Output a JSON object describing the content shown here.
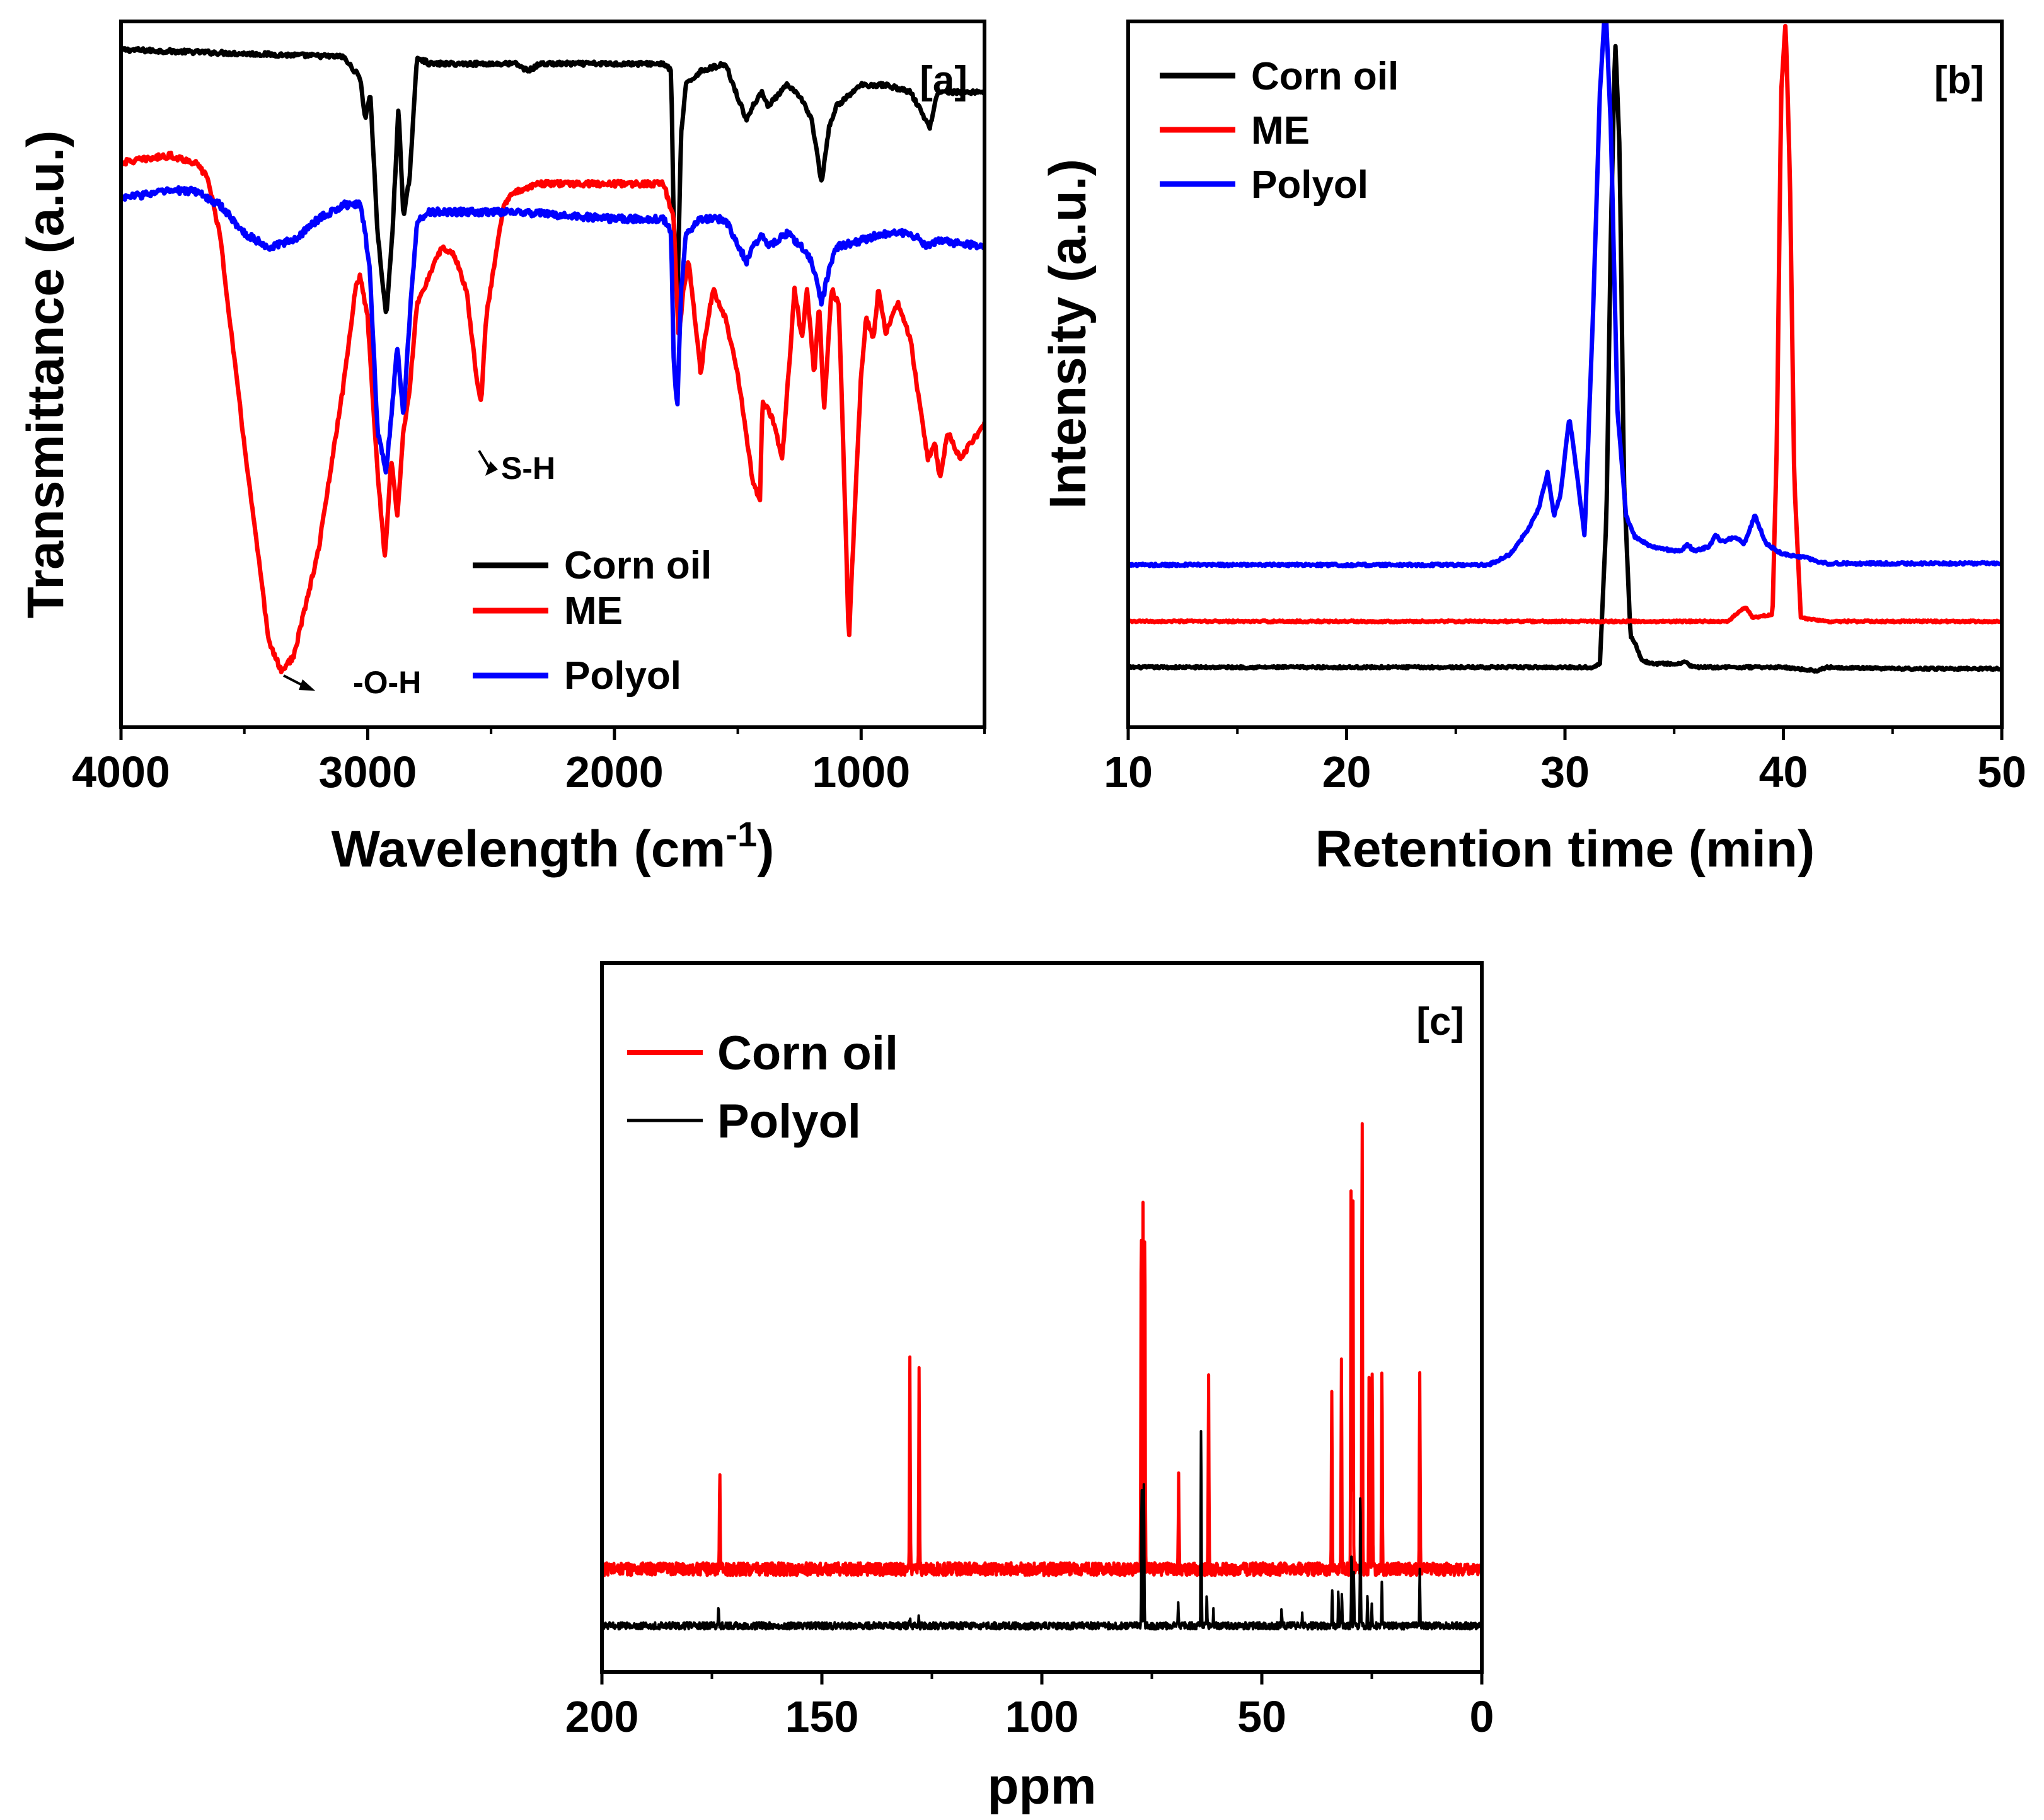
{
  "chart_data": [
    {
      "panel": "[a]",
      "type": "line",
      "xlabel": "Wavelength (cm",
      "xlabel_sup": "-1",
      "xlabel_close": ")",
      "ylabel": "Transmittance (a.u.)",
      "xlim": [
        4000,
        500
      ],
      "ylim": [
        0,
        1
      ],
      "x_ticks": [
        4000,
        3000,
        2000,
        1000
      ],
      "x_tick_labels": [
        "4000",
        "3000",
        "2000",
        "1000"
      ],
      "y_ticks": [],
      "legend_position": "bottom-right",
      "annotations": [
        {
          "text": "S-H",
          "x": 2550
        },
        {
          "text": "-O-H",
          "x": 3350
        }
      ],
      "series": [
        {
          "name": "Corn oil",
          "color": "#000000",
          "noise": 0.003,
          "x": [
            4000,
            3100,
            3030,
            3010,
            2990,
            2960,
            2925,
            2900,
            2875,
            2855,
            2830,
            2800,
            2750,
            2400,
            2350,
            2300,
            1800,
            1770,
            1760,
            1745,
            1730,
            1710,
            1650,
            1550,
            1465,
            1440,
            1400,
            1377,
            1300,
            1240,
            1200,
            1160,
            1130,
            1100,
            1000,
            900,
            800,
            722,
            690,
            500
          ],
          "y": [
            0.96,
            0.95,
            0.92,
            0.86,
            0.9,
            0.7,
            0.58,
            0.7,
            0.88,
            0.72,
            0.78,
            0.95,
            0.94,
            0.94,
            0.93,
            0.94,
            0.94,
            0.93,
            0.72,
            0.6,
            0.84,
            0.91,
            0.93,
            0.94,
            0.86,
            0.88,
            0.9,
            0.88,
            0.91,
            0.89,
            0.86,
            0.77,
            0.85,
            0.88,
            0.91,
            0.91,
            0.9,
            0.85,
            0.9,
            0.9
          ]
        },
        {
          "name": "ME",
          "color": "#ff0000",
          "noise": 0.004,
          "x": [
            4000,
            3800,
            3700,
            3650,
            3600,
            3500,
            3400,
            3350,
            3300,
            3200,
            3100,
            3050,
            3030,
            3000,
            2960,
            2930,
            2905,
            2880,
            2855,
            2830,
            2800,
            2700,
            2650,
            2600,
            2560,
            2540,
            2520,
            2450,
            2400,
            2300,
            2000,
            1800,
            1760,
            1740,
            1720,
            1700,
            1680,
            1650,
            1630,
            1600,
            1550,
            1500,
            1460,
            1440,
            1410,
            1400,
            1360,
            1320,
            1290,
            1270,
            1240,
            1220,
            1190,
            1170,
            1150,
            1120,
            1090,
            1060,
            1050,
            1040,
            1020,
            1000,
            980,
            950,
            930,
            900,
            850,
            800,
            760,
            730,
            700,
            680,
            650,
            600,
            500
          ],
          "y": [
            0.8,
            0.81,
            0.8,
            0.78,
            0.7,
            0.4,
            0.12,
            0.08,
            0.1,
            0.25,
            0.48,
            0.62,
            0.64,
            0.58,
            0.36,
            0.24,
            0.38,
            0.3,
            0.42,
            0.48,
            0.6,
            0.68,
            0.67,
            0.62,
            0.5,
            0.46,
            0.58,
            0.74,
            0.76,
            0.77,
            0.77,
            0.77,
            0.72,
            0.55,
            0.62,
            0.66,
            0.6,
            0.5,
            0.56,
            0.62,
            0.58,
            0.5,
            0.4,
            0.35,
            0.32,
            0.46,
            0.44,
            0.38,
            0.52,
            0.62,
            0.55,
            0.62,
            0.5,
            0.6,
            0.45,
            0.62,
            0.6,
            0.25,
            0.12,
            0.2,
            0.35,
            0.5,
            0.58,
            0.55,
            0.62,
            0.56,
            0.6,
            0.55,
            0.45,
            0.38,
            0.4,
            0.35,
            0.42,
            0.38,
            0.43
          ]
        },
        {
          "name": "Polyol",
          "color": "#0000ff",
          "noise": 0.005,
          "x": [
            4000,
            3800,
            3700,
            3600,
            3500,
            3400,
            3300,
            3200,
            3100,
            3030,
            3010,
            2990,
            2960,
            2925,
            2900,
            2880,
            2855,
            2830,
            2800,
            2750,
            2400,
            2000,
            1800,
            1770,
            1760,
            1745,
            1730,
            1710,
            1650,
            1550,
            1465,
            1440,
            1400,
            1377,
            1300,
            1240,
            1200,
            1160,
            1130,
            1100,
            1000,
            900,
            800,
            722,
            690,
            500
          ],
          "y": [
            0.75,
            0.76,
            0.76,
            0.74,
            0.7,
            0.68,
            0.69,
            0.72,
            0.74,
            0.74,
            0.7,
            0.64,
            0.42,
            0.36,
            0.46,
            0.54,
            0.44,
            0.58,
            0.72,
            0.73,
            0.73,
            0.72,
            0.72,
            0.7,
            0.52,
            0.45,
            0.62,
            0.7,
            0.72,
            0.72,
            0.66,
            0.68,
            0.7,
            0.68,
            0.7,
            0.68,
            0.66,
            0.6,
            0.65,
            0.68,
            0.69,
            0.7,
            0.7,
            0.68,
            0.69,
            0.68
          ]
        }
      ]
    },
    {
      "panel": "[b]",
      "type": "line",
      "xlabel": "Retention time (min)",
      "ylabel": "Intensity (a.u.)",
      "xlim": [
        10,
        50
      ],
      "ylim": [
        0,
        1
      ],
      "x_ticks": [
        10,
        20,
        30,
        40,
        50
      ],
      "x_tick_labels": [
        "10",
        "20",
        "30",
        "40",
        "50"
      ],
      "y_ticks": [],
      "legend_position": "top-left",
      "series": [
        {
          "name": "Corn oil",
          "color": "#000000",
          "noise": 0.0015,
          "x": [
            10,
            31.2,
            31.6,
            31.9,
            32.1,
            32.3,
            32.5,
            32.7,
            33.0,
            33.2,
            33.5,
            34.0,
            35.0,
            36.0,
            40.0,
            41.5,
            42.0,
            45.0,
            50.0
          ],
          "y": [
            0.085,
            0.085,
            0.09,
            0.3,
            0.7,
            0.975,
            0.82,
            0.35,
            0.13,
            0.12,
            0.095,
            0.09,
            0.09,
            0.085,
            0.085,
            0.08,
            0.085,
            0.083,
            0.083
          ],
          "peaks": [
            {
              "x": 35.5,
              "h": 0.005,
              "w": 0.2
            }
          ]
        },
        {
          "name": "ME",
          "color": "#ff0000",
          "noise": 0.0012,
          "x": [
            10,
            37.5,
            38.0,
            38.3,
            38.6,
            39.5,
            39.7,
            39.9,
            40.1,
            40.3,
            40.5,
            40.8,
            42.0,
            50.0
          ],
          "y": [
            0.15,
            0.15,
            0.165,
            0.17,
            0.155,
            0.16,
            0.4,
            0.9,
            1.0,
            0.78,
            0.35,
            0.155,
            0.15,
            0.15
          ],
          "peaks": []
        },
        {
          "name": "Polyol",
          "color": "#0000ff",
          "noise": 0.0018,
          "x": [
            10,
            26.5,
            27.5,
            28.3,
            28.8,
            29.2,
            29.5,
            29.8,
            30.2,
            30.5,
            30.9,
            31.3,
            31.6,
            31.85,
            32.1,
            32.4,
            32.8,
            33.2,
            34.0,
            35.0,
            36.0,
            37.0,
            37.8,
            38.2,
            38.7,
            39.2,
            40.0,
            41.0,
            42.0,
            50.0
          ],
          "y": [
            0.23,
            0.23,
            0.245,
            0.28,
            0.31,
            0.36,
            0.3,
            0.33,
            0.44,
            0.37,
            0.27,
            0.6,
            0.9,
            1.03,
            0.85,
            0.45,
            0.3,
            0.27,
            0.255,
            0.25,
            0.25,
            0.26,
            0.27,
            0.26,
            0.3,
            0.26,
            0.245,
            0.24,
            0.232,
            0.232
          ],
          "peaks": [
            {
              "x": 35.6,
              "h": 0.008,
              "w": 0.2
            },
            {
              "x": 36.9,
              "h": 0.012,
              "w": 0.2
            }
          ]
        }
      ]
    },
    {
      "panel": "[c]",
      "type": "line",
      "xlabel": "ppm",
      "ylabel": "",
      "xlim": [
        200,
        0
      ],
      "ylim": [
        0,
        1
      ],
      "x_ticks": [
        200,
        150,
        100,
        50,
        0
      ],
      "x_tick_labels": [
        "200",
        "150",
        "100",
        "50",
        "0"
      ],
      "y_ticks": [],
      "legend_position": "top-left",
      "series": [
        {
          "name": "Corn oil",
          "color": "#ff0000",
          "noise": 0.009,
          "baseline": 0.145,
          "peaks": [
            {
              "x": 173.2,
              "h": 0.145
            },
            {
              "x": 130.0,
              "h": 0.3
            },
            {
              "x": 127.9,
              "h": 0.285
            },
            {
              "x": 77.4,
              "h": 0.51
            },
            {
              "x": 77.0,
              "h": 0.51
            },
            {
              "x": 76.6,
              "h": 0.5
            },
            {
              "x": 68.9,
              "h": 0.13
            },
            {
              "x": 62.1,
              "h": 0.27
            },
            {
              "x": 34.1,
              "h": 0.26
            },
            {
              "x": 31.9,
              "h": 0.295
            },
            {
              "x": 29.7,
              "h": 0.57
            },
            {
              "x": 29.3,
              "h": 0.54
            },
            {
              "x": 27.2,
              "h": 0.64
            },
            {
              "x": 25.6,
              "h": 0.3
            },
            {
              "x": 24.9,
              "h": 0.28
            },
            {
              "x": 22.7,
              "h": 0.285
            },
            {
              "x": 14.1,
              "h": 0.28
            }
          ]
        },
        {
          "name": "Polyol",
          "color": "#000000",
          "noise": 0.005,
          "baseline": 0.065,
          "peaks": [
            {
              "x": 173.5,
              "h": 0.03
            },
            {
              "x": 130.0,
              "h": 0.012
            },
            {
              "x": 128.0,
              "h": 0.01
            },
            {
              "x": 77.3,
              "h": 0.205
            },
            {
              "x": 76.8,
              "h": 0.2
            },
            {
              "x": 69.0,
              "h": 0.03
            },
            {
              "x": 63.8,
              "h": 0.285
            },
            {
              "x": 62.5,
              "h": 0.045
            },
            {
              "x": 61.0,
              "h": 0.02
            },
            {
              "x": 45.5,
              "h": 0.025
            },
            {
              "x": 40.8,
              "h": 0.015
            },
            {
              "x": 34.0,
              "h": 0.05
            },
            {
              "x": 32.6,
              "h": 0.05
            },
            {
              "x": 31.8,
              "h": 0.045
            },
            {
              "x": 29.6,
              "h": 0.11
            },
            {
              "x": 29.1,
              "h": 0.08
            },
            {
              "x": 27.6,
              "h": 0.195
            },
            {
              "x": 26.0,
              "h": 0.04
            },
            {
              "x": 25.0,
              "h": 0.03
            },
            {
              "x": 22.7,
              "h": 0.06
            },
            {
              "x": 14.1,
              "h": 0.08
            }
          ]
        }
      ]
    }
  ]
}
